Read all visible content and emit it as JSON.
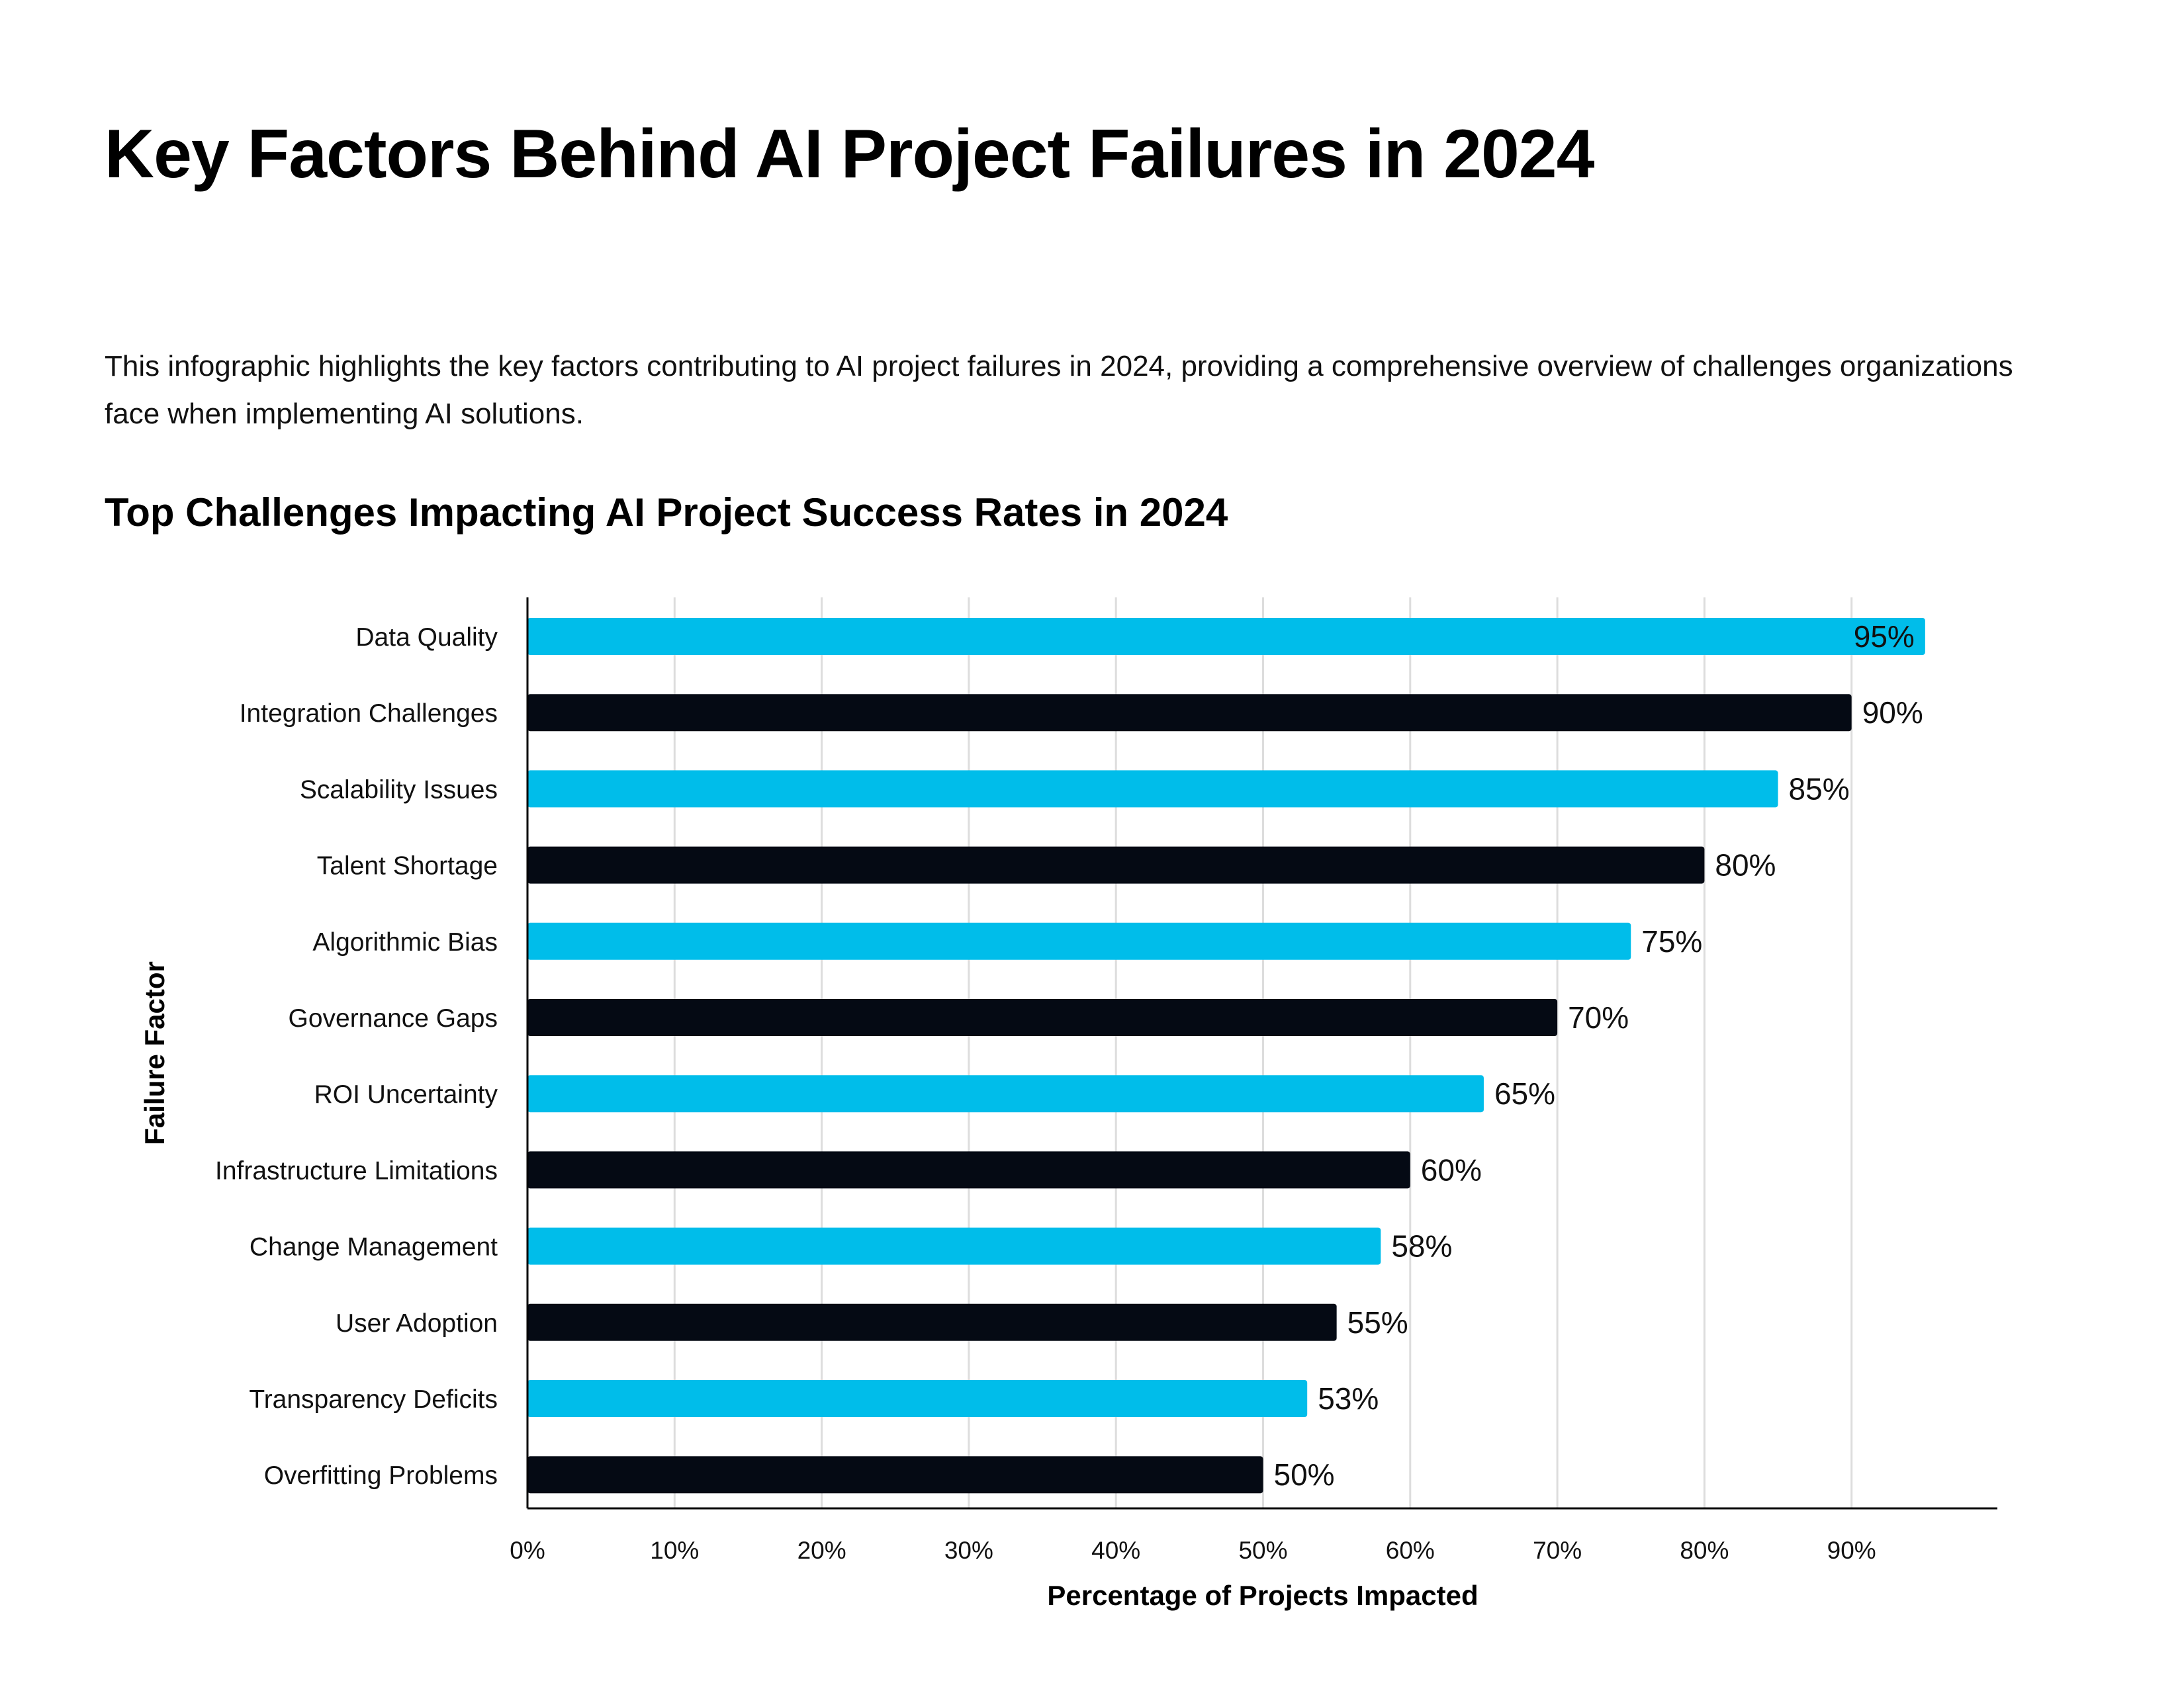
{
  "header": {
    "title": "Key Factors Behind AI Project Failures in 2024",
    "description": "This infographic highlights the key factors contributing to AI project failures in 2024, providing a comprehensive overview of challenges organizations face when implementing AI solutions."
  },
  "chart_data": {
    "type": "bar",
    "orientation": "horizontal",
    "title": "Top Challenges Impacting AI Project Success Rates in 2024",
    "xlabel": "Percentage of Projects Impacted",
    "ylabel": "Failure Factor",
    "categories": [
      "Data Quality",
      "Integration Challenges",
      "Scalability Issues",
      "Talent Shortage",
      "Algorithmic Bias",
      "Governance Gaps",
      "ROI Uncertainty",
      "Infrastructure Limitations",
      "Change Management",
      "User Adoption",
      "Transparency Deficits",
      "Overfitting Problems"
    ],
    "values": [
      95,
      90,
      85,
      80,
      75,
      70,
      65,
      60,
      58,
      55,
      53,
      50
    ],
    "data_labels": [
      "95%",
      "90%",
      "85%",
      "80%",
      "75%",
      "70%",
      "65%",
      "60%",
      "58%",
      "55%",
      "53%",
      "50%"
    ],
    "xlim": [
      0,
      100
    ],
    "xticks": [
      0,
      10,
      20,
      30,
      40,
      50,
      60,
      70,
      80,
      90
    ],
    "xtick_labels": [
      "0%",
      "10%",
      "20%",
      "30%",
      "40%",
      "50%",
      "60%",
      "70%",
      "80%",
      "90%"
    ],
    "grid": "vertical",
    "legend": "none",
    "colors": [
      "#00bdea",
      "#050a14"
    ]
  }
}
